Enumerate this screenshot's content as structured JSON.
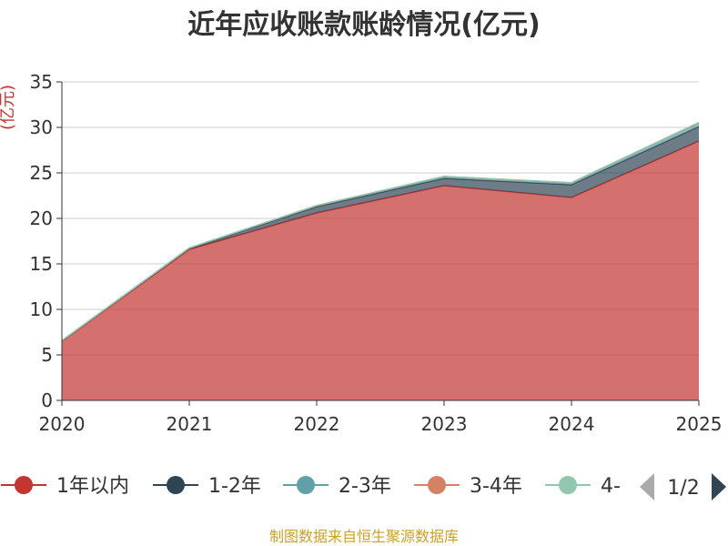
{
  "chart_data": {
    "type": "area",
    "stacked": true,
    "title": "近年应收账款账龄情况(亿元)",
    "ylabel": "(亿元)",
    "xlabel": "",
    "categories": [
      "2020",
      "2021",
      "2022",
      "2023",
      "2024",
      "2025"
    ],
    "ylim": [
      0,
      35
    ],
    "yticks": [
      "0",
      "5",
      "10",
      "15",
      "20",
      "25",
      "30",
      "35"
    ],
    "grid": true,
    "series": [
      {
        "name": "1年以内",
        "color": "#c23531",
        "values": [
          6.5,
          16.6,
          20.6,
          23.6,
          22.3,
          28.5
        ]
      },
      {
        "name": "1-2年",
        "color": "#2f4554",
        "values": [
          0.05,
          0.1,
          0.7,
          0.8,
          1.4,
          1.6
        ]
      },
      {
        "name": "2-3年",
        "color": "#61a0a8",
        "values": [
          0.02,
          0.05,
          0.1,
          0.2,
          0.2,
          0.4
        ]
      },
      {
        "name": "3-4年",
        "color": "#d48265",
        "values": [
          0,
          0,
          0,
          0,
          0,
          0
        ]
      },
      {
        "name": "4-",
        "color": "#91c7ae",
        "values": [
          0.01,
          0.01,
          0.02,
          0.02,
          0.03,
          0.05
        ]
      }
    ]
  },
  "legend": {
    "items": [
      "1年以内",
      "1-2年",
      "2-3年",
      "3-4年",
      "4-"
    ],
    "page": "1/2"
  },
  "source": "制图数据来自恒生聚源数据库"
}
